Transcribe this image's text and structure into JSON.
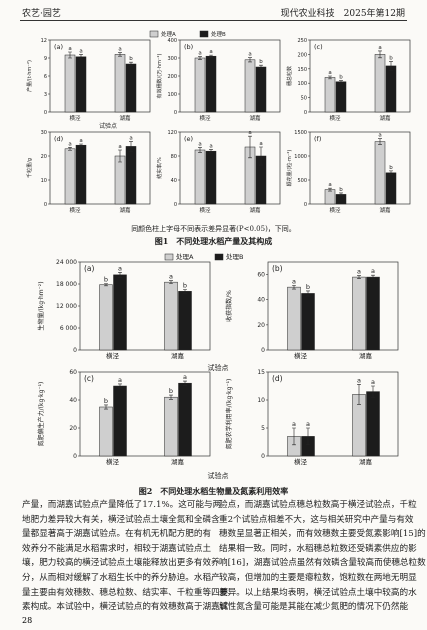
{
  "header": {
    "section": "农艺·园艺",
    "journal": "现代农业科技　2025年第12期"
  },
  "figures": [
    {
      "caption": "图1　不同处理水稻产量及其构成",
      "note": "同颜色柱上字母不同表示差异显著(P<0.05)，下同。",
      "xlabel": "试验点",
      "legend": [
        {
          "name": "处理A",
          "color": "#cfcfcf"
        },
        {
          "name": "处理B",
          "color": "#1c1c1c"
        }
      ],
      "panels": [
        {
          "label": "(a)",
          "ylabel": "产量/(t·hm⁻²)",
          "categories": [
            "横泾",
            "湖嘉"
          ],
          "ylim": [
            0,
            12
          ],
          "yticks": [
            0,
            3,
            6,
            9,
            12
          ],
          "series": [
            {
              "values": [
                9.5,
                9.6
              ],
              "errors": [
                0.5,
                0.3
              ],
              "letters": [
                "a",
                "a"
              ]
            },
            {
              "values": [
                9.2,
                8.0
              ],
              "errors": [
                0.4,
                0.3
              ],
              "letters": [
                "a",
                "b"
              ]
            }
          ]
        },
        {
          "label": "(b)",
          "ylabel": "有效穗数/(万·hm⁻²)",
          "categories": [
            "横泾",
            "湖嘉"
          ],
          "ylim": [
            0,
            400
          ],
          "yticks": [
            0,
            100,
            200,
            300,
            400
          ],
          "series": [
            {
              "values": [
                300,
                290
              ],
              "errors": [
                8,
                12
              ],
              "letters": [
                "a",
                "a"
              ]
            },
            {
              "values": [
                310,
                250
              ],
              "errors": [
                6,
                10
              ],
              "letters": [
                "a",
                "b"
              ]
            }
          ]
        },
        {
          "label": "(c)",
          "ylabel": "穗总粒数",
          "categories": [
            "横泾",
            "湖嘉"
          ],
          "ylim": [
            0,
            250
          ],
          "yticks": [
            0,
            50,
            100,
            150,
            200,
            250
          ],
          "series": [
            {
              "values": [
                120,
                200
              ],
              "errors": [
                5,
                12
              ],
              "letters": [
                "a",
                "a"
              ]
            },
            {
              "values": [
                105,
                160
              ],
              "errors": [
                4,
                15
              ],
              "letters": [
                "b",
                "b"
              ]
            }
          ]
        },
        {
          "label": "(d)",
          "ylabel": "千粒重/g",
          "categories": [
            "横泾",
            "湖嘉"
          ],
          "ylim": [
            0,
            30
          ],
          "yticks": [
            0,
            10,
            20,
            30
          ],
          "series": [
            {
              "values": [
                23,
                20
              ],
              "errors": [
                0.6,
                2.5
              ],
              "letters": [
                "a",
                "a"
              ]
            },
            {
              "values": [
                24.5,
                24
              ],
              "errors": [
                0.5,
                2
              ],
              "letters": [
                "a",
                "a"
              ]
            }
          ]
        },
        {
          "label": "(e)",
          "ylabel": "结实率/%",
          "categories": [
            "横泾",
            "湖嘉"
          ],
          "ylim": [
            0,
            120
          ],
          "yticks": [
            0,
            40,
            80,
            120
          ],
          "series": [
            {
              "values": [
                90,
                95
              ],
              "errors": [
                4,
                18
              ],
              "letters": [
                "a",
                "a"
              ]
            },
            {
              "values": [
                88,
                80
              ],
              "errors": [
                3,
                15
              ],
              "letters": [
                "a",
                "a"
              ]
            }
          ]
        },
        {
          "label": "(f)",
          "ylabel": "颖花量/(粒·m⁻²)",
          "categories": [
            "横泾",
            "湖嘉"
          ],
          "ylim": [
            0,
            1500
          ],
          "yticks": [
            0,
            500,
            1000,
            1500
          ],
          "series": [
            {
              "values": [
                300,
                1300
              ],
              "errors": [
                30,
                60
              ],
              "letters": [
                "a",
                "a"
              ]
            },
            {
              "values": [
                200,
                650
              ],
              "errors": [
                30,
                40
              ],
              "letters": [
                "b",
                "b"
              ]
            }
          ]
        }
      ]
    },
    {
      "caption": "图2　不同处理水稻生物量及氮素利用效率",
      "xlabel": "试验点",
      "legend": [
        {
          "name": "处理A",
          "color": "#cfcfcf"
        },
        {
          "name": "处理B",
          "color": "#1c1c1c"
        }
      ],
      "panels": [
        {
          "label": "(a)",
          "ylabel": "生物量/(kg·hm⁻²)",
          "categories": [
            "横泾",
            "湖嘉"
          ],
          "ylim": [
            0,
            24000
          ],
          "yticks": [
            0,
            {
              "value": 6000,
              "label": "6 000"
            },
            {
              "value": 12000,
              "label": "12 000"
            },
            {
              "value": 18000,
              "label": "18 000"
            },
            {
              "value": 24000,
              "label": "24 000"
            }
          ],
          "series": [
            {
              "values": [
                17800,
                18500
              ],
              "errors": [
                300,
                400
              ],
              "letters": [
                "b",
                "a"
              ]
            },
            {
              "values": [
                20500,
                16000
              ],
              "errors": [
                700,
                500
              ],
              "letters": [
                "a",
                "b"
              ]
            }
          ]
        },
        {
          "label": "(b)",
          "ylabel": "收获指数/%",
          "categories": [
            "横泾",
            "湖嘉"
          ],
          "ylim": [
            0,
            70
          ],
          "yticks": [
            0,
            20,
            40,
            60
          ],
          "series": [
            {
              "values": [
                50,
                58
              ],
              "errors": [
                1.5,
                1.2
              ],
              "letters": [
                "a",
                "a"
              ]
            },
            {
              "values": [
                45,
                58
              ],
              "errors": [
                2,
                1.5
              ],
              "letters": [
                "b",
                "a"
              ]
            }
          ]
        },
        {
          "label": "(c)",
          "ylabel": "氮肥偏生产力/(kg·kg⁻¹)",
          "categories": [
            "横泾",
            "湖嘉"
          ],
          "ylim": [
            0,
            60
          ],
          "yticks": [
            0,
            20,
            40,
            60
          ],
          "series": [
            {
              "values": [
                35,
                42
              ],
              "errors": [
                1.5,
                1.5
              ],
              "letters": [
                "b",
                "b"
              ]
            },
            {
              "values": [
                50,
                52
              ],
              "errors": [
                1.5,
                1.5
              ],
              "letters": [
                "a",
                "a"
              ]
            }
          ]
        },
        {
          "label": "(d)",
          "ylabel": "氮肥农学利用率/(kg·kg⁻¹)",
          "categories": [
            "横泾",
            "湖嘉"
          ],
          "ylim": [
            0,
            15
          ],
          "yticks": [
            0,
            5,
            10,
            15
          ],
          "series": [
            {
              "values": [
                3.5,
                11
              ],
              "errors": [
                1.5,
                1.8
              ],
              "letters": [
                "a",
                "a"
              ]
            },
            {
              "values": [
                3.5,
                11.5
              ],
              "errors": [
                1.5,
                1
              ],
              "letters": [
                "a",
                "a"
              ]
            }
          ]
        }
      ]
    }
  ],
  "body": {
    "columns": [
      [
        "产量，而湖嘉试验点产量降低了17.1%。这可能与两",
        "地肥力差异较大有关，横泾试验点土壤全氮和全磷含",
        "量都显著高于湖嘉试验点。在有机无机配方肥的有",
        "效养分不能满足水稻需求时，相较于湖嘉试验点土",
        "壤，肥力较高的横泾试验点土壤能释放出更多有效养",
        "分，从而相对缓解了水稻生长中的养分胁迫。水稻产",
        "量主要由有效穗数、穗总粒数、结实率、千粒重等四要",
        "素构成。本试验中，横泾试验点的有效穗数高于湖嘉试"
      ],
      [
        "验点，而湖嘉试验点穗总粒数高于横泾试验点，千粒",
        "重2个试验点相差不大，这与相关研究中产量与有效",
        "穗数呈显著正相关，而有效穗数主要受氮素影响[15]的",
        "结果相一致。同时，水稻穗总粒数还受磷素供应的影",
        "响[16]，湖嘉试验点虽然有效磷含量较高而使穗总粒数",
        "较高，但增加的主要是瘪粒数，饱粒数在两地无明显",
        "差异。以上结果均表明，横泾试验点土壤中较高的水",
        "解性氮含量可能是其能在减少氮肥的情况下仍然能"
      ]
    ]
  },
  "page_number": "28"
}
